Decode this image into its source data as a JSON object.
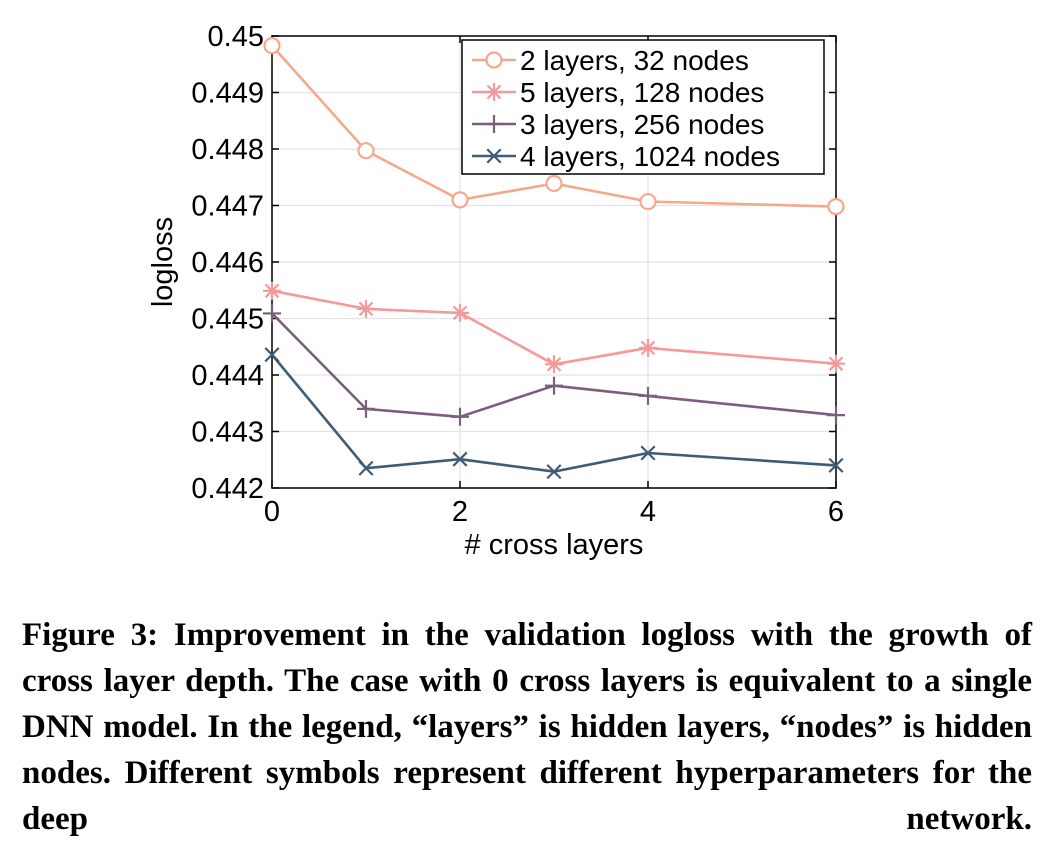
{
  "chart_data": {
    "type": "line",
    "title": "",
    "xlabel": "# cross layers",
    "ylabel": "logloss",
    "xlim": [
      0,
      6
    ],
    "ylim": [
      0.442,
      0.45
    ],
    "x_ticks": [
      0,
      2,
      4,
      6
    ],
    "y_ticks": [
      0.442,
      0.443,
      0.444,
      0.445,
      0.446,
      0.447,
      0.448,
      0.449,
      0.45
    ],
    "x_tick_labels": [
      "0",
      "2",
      "4",
      "6"
    ],
    "y_tick_labels": [
      "0.442",
      "0.443",
      "0.444",
      "0.445",
      "0.446",
      "0.447",
      "0.448",
      "0.449",
      "0.45"
    ],
    "grid": true,
    "legend_position": "top-right",
    "x": [
      0,
      1,
      2,
      3,
      4,
      6
    ],
    "series": [
      {
        "name": "2 layers, 32 nodes",
        "marker": "circle",
        "color": "#f5a88c",
        "values": [
          0.44983,
          0.44797,
          0.4471,
          0.44739,
          0.44707,
          0.44698
        ]
      },
      {
        "name": "5 layers, 128 nodes",
        "marker": "asterisk",
        "color": "#f49a9a",
        "values": [
          0.44549,
          0.44517,
          0.4451,
          0.44419,
          0.44448,
          0.4442
        ]
      },
      {
        "name": "3 layers, 256 nodes",
        "marker": "plus",
        "color": "#7b5e7b",
        "values": [
          0.44509,
          0.4434,
          0.44326,
          0.44381,
          0.44363,
          0.44329
        ]
      },
      {
        "name": "4 layers, 1024 nodes",
        "marker": "x",
        "color": "#3e5c76",
        "values": [
          0.44436,
          0.44235,
          0.44251,
          0.44229,
          0.44262,
          0.4424
        ]
      }
    ]
  },
  "caption": "Figure 3: Improvement in the validation logloss with the growth of cross layer depth. The case with 0 cross layers is equivalent to a single DNN model. In the legend, “layers” is hidden layers, “nodes” is hidden nodes. Different symbols represent different hyperparameters for the deep network."
}
